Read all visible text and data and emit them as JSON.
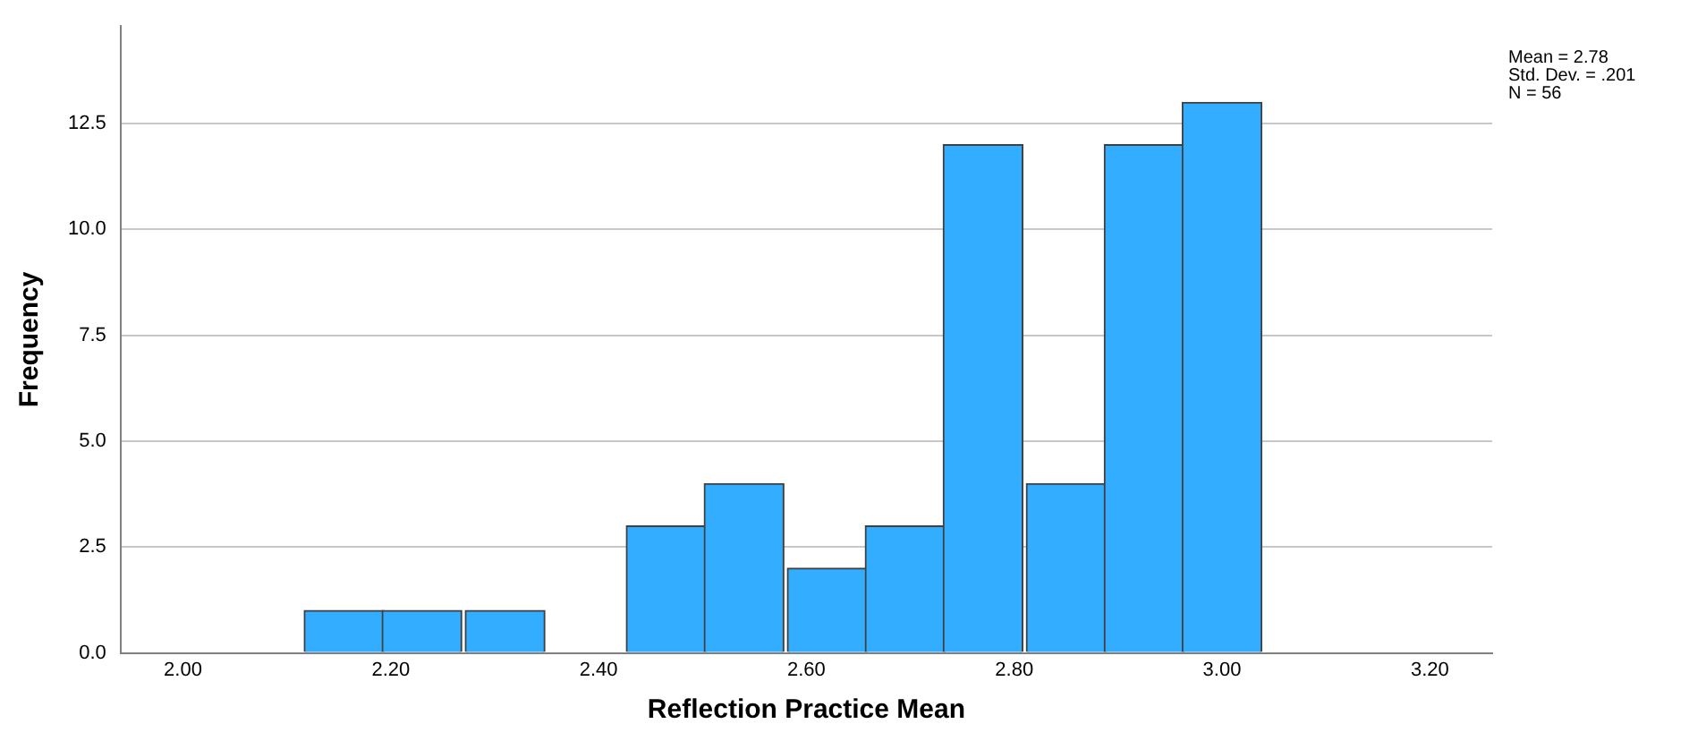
{
  "chart_data": {
    "type": "histogram",
    "xlabel": "Reflection Practice Mean",
    "ylabel": "Frequency",
    "bins": [
      2.12,
      2.19,
      2.27,
      2.35,
      2.43,
      2.5,
      2.58,
      2.66,
      2.73,
      2.81,
      2.89,
      2.96,
      3.04
    ],
    "values": [
      1,
      1,
      1,
      0,
      3,
      4,
      2,
      3,
      12,
      4,
      12,
      13
    ],
    "color": "#33adff",
    "xlim": [
      1.94,
      3.26
    ],
    "xticks": [
      {
        "value": 2,
        "label": "2.00"
      },
      {
        "value": 2.2,
        "label": "2.20"
      },
      {
        "value": 2.4,
        "label": "2.40"
      },
      {
        "value": 2.6,
        "label": "2.60"
      },
      {
        "value": 2.8,
        "label": "2.80"
      },
      {
        "value": 3,
        "label": "3.00"
      },
      {
        "value": 3.2,
        "label": "3.20"
      }
    ],
    "ylim": [
      0,
      14.8
    ],
    "yticks": [
      {
        "value": 0,
        "label": "0.0"
      },
      {
        "value": 2.5,
        "label": "2.5"
      },
      {
        "value": 5,
        "label": "5.0"
      },
      {
        "value": 7.5,
        "label": "7.5"
      },
      {
        "value": 10,
        "label": "10.0"
      },
      {
        "value": 12.5,
        "label": "12.5"
      }
    ],
    "grid": "y",
    "annotations": [
      "Mean = 2.78",
      "Std. Dev. = .201",
      "N = 56"
    ]
  }
}
